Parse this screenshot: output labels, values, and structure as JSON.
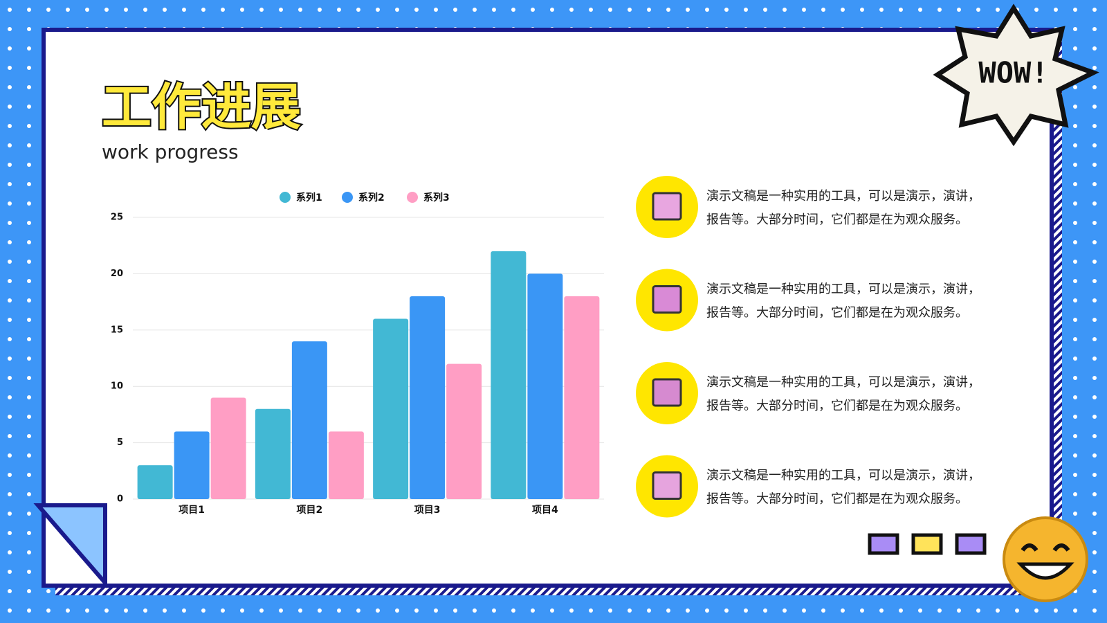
{
  "header": {
    "title": "工作进展",
    "subtitle": "work progress",
    "badge": "WOW!"
  },
  "chart_data": {
    "type": "bar",
    "categories": [
      "项目1",
      "项目2",
      "项目3",
      "项目4"
    ],
    "series": [
      {
        "name": "系列1",
        "color": "#42b8d4",
        "values": [
          3,
          8,
          16,
          22
        ]
      },
      {
        "name": "系列2",
        "color": "#3a96f5",
        "values": [
          6,
          14,
          18,
          20
        ]
      },
      {
        "name": "系列3",
        "color": "#ff9ec4",
        "values": [
          9,
          6,
          12,
          18
        ]
      }
    ],
    "ylim": [
      0,
      25
    ],
    "yticks": [
      0,
      5,
      10,
      15,
      20,
      25
    ],
    "grid": true,
    "legend": "top"
  },
  "items": [
    {
      "lines": [
        "演示文稿是一种实用的工具，可以是演示，演讲，",
        "报告等。大部分时间，它们都是在为观众服务。"
      ]
    },
    {
      "lines": [
        "演示文稿是一种实用的工具，可以是演示，演讲，",
        "报告等。大部分时间，它们都是在为观众服务。"
      ]
    },
    {
      "lines": [
        "演示文稿是一种实用的工具，可以是演示，演讲，",
        "报告等。大部分时间，它们都是在为观众服务。"
      ]
    },
    {
      "lines": [
        "演示文稿是一种实用的工具，可以是演示，演讲，",
        "报告等。大部分时间，它们都是在为观众服务。"
      ]
    }
  ]
}
